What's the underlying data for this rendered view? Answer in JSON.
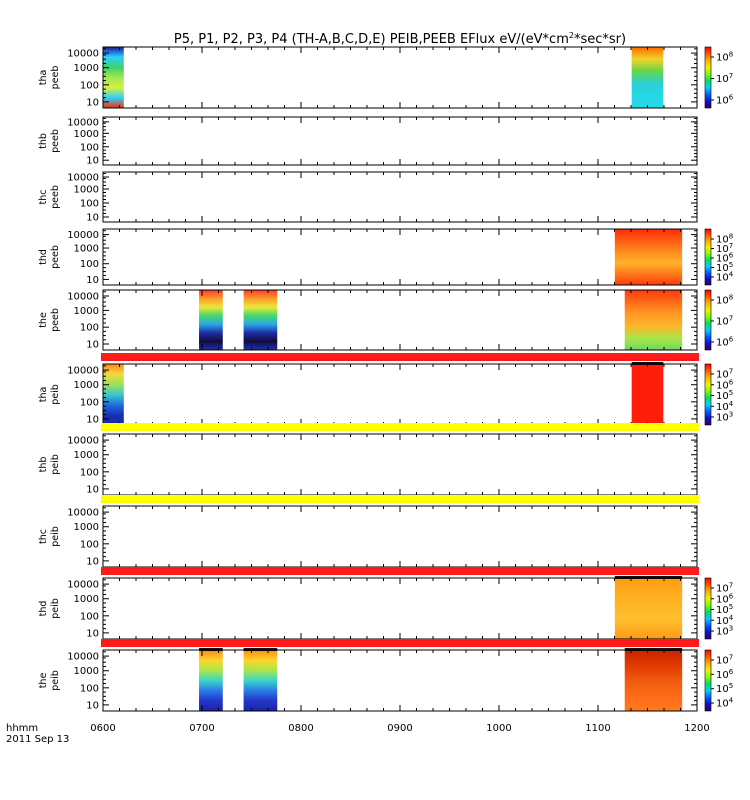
{
  "title_main": "P5, P1, P2, P3, P4 (TH-A,B,C,D,E) PEIB,PEEB EFlux eV/(eV*cm",
  "title_sup": "2",
  "title_tail": "*sec*sr)",
  "footer": {
    "line1": "hhmm",
    "line2": "2011 Sep 13"
  },
  "chart_data": {
    "type": "heatmap",
    "x_tick_labels": [
      "0600",
      "0700",
      "0800",
      "0900",
      "1000",
      "1100",
      "1200"
    ],
    "x_range_hours": [
      6,
      12
    ],
    "y_scale": "log",
    "y_tick_labels": [
      "10",
      "100",
      "1000",
      "10000"
    ],
    "colors": {
      "stripe_red": "#ff1a1a",
      "stripe_yellow": "#ffff00",
      "deep_red": "#8b0000"
    },
    "panels": [
      {
        "probe": "tha",
        "instrument": "peeb",
        "colorbar": {
          "ticks": [
            {
              "base": "10",
              "exp": "8"
            },
            {
              "base": "10",
              "exp": "7"
            },
            {
              "base": "10",
              "exp": "6"
            }
          ]
        },
        "data_blocks": [
          {
            "t0": 6.0,
            "t1": 6.21,
            "palette": "tha_peeb_a"
          },
          {
            "t0": 11.34,
            "t1": 11.66,
            "palette": "tha_peeb_b"
          }
        ]
      },
      {
        "probe": "thb",
        "instrument": "peeb",
        "colorbar": null,
        "data_blocks": []
      },
      {
        "probe": "thc",
        "instrument": "peeb",
        "colorbar": null,
        "data_blocks": []
      },
      {
        "probe": "thd",
        "instrument": "peeb",
        "colorbar": {
          "ticks": [
            {
              "base": "10",
              "exp": "8"
            },
            {
              "base": "10",
              "exp": "7"
            },
            {
              "base": "10",
              "exp": "6"
            },
            {
              "base": "10",
              "exp": "5"
            },
            {
              "base": "10",
              "exp": "4"
            }
          ]
        },
        "data_blocks": [
          {
            "t0": 11.17,
            "t1": 11.85,
            "palette": "thd_peeb"
          }
        ]
      },
      {
        "probe": "the",
        "instrument": "peeb",
        "colorbar": {
          "ticks": [
            {
              "base": "10",
              "exp": "8"
            },
            {
              "base": "10",
              "exp": "7"
            },
            {
              "base": "10",
              "exp": "6"
            }
          ]
        },
        "data_blocks": [
          {
            "t0": 6.97,
            "t1": 7.21,
            "palette": "the_peeb"
          },
          {
            "t0": 7.42,
            "t1": 7.76,
            "palette": "the_peeb"
          },
          {
            "t0": 11.27,
            "t1": 11.85,
            "palette": "the_peeb2"
          }
        ]
      },
      {
        "probe": "tha",
        "instrument": "peib",
        "stripe": "red",
        "colorbar": {
          "ticks": [
            {
              "base": "10",
              "exp": "7"
            },
            {
              "base": "10",
              "exp": "6"
            },
            {
              "base": "10",
              "exp": "5"
            },
            {
              "base": "10",
              "exp": "4"
            },
            {
              "base": "10",
              "exp": "3"
            }
          ]
        },
        "data_blocks": [
          {
            "t0": 6.0,
            "t1": 6.21,
            "palette": "tha_peib"
          },
          {
            "t0": 11.34,
            "t1": 11.66,
            "palette": "red_flat"
          }
        ]
      },
      {
        "probe": "thb",
        "instrument": "peib",
        "stripe": "yellow",
        "colorbar": null,
        "data_blocks": []
      },
      {
        "probe": "thc",
        "instrument": "peib",
        "stripe": "yellow",
        "colorbar": null,
        "data_blocks": []
      },
      {
        "probe": "thd",
        "instrument": "peib",
        "stripe": "red",
        "colorbar": {
          "ticks": [
            {
              "base": "10",
              "exp": "7"
            },
            {
              "base": "10",
              "exp": "6"
            },
            {
              "base": "10",
              "exp": "5"
            },
            {
              "base": "10",
              "exp": "4"
            },
            {
              "base": "10",
              "exp": "3"
            }
          ]
        },
        "data_blocks": [
          {
            "t0": 11.17,
            "t1": 11.85,
            "palette": "orange_grad"
          }
        ]
      },
      {
        "probe": "the",
        "instrument": "peib",
        "stripe": "red",
        "colorbar": {
          "ticks": [
            {
              "base": "10",
              "exp": "7"
            },
            {
              "base": "10",
              "exp": "6"
            },
            {
              "base": "10",
              "exp": "5"
            },
            {
              "base": "10",
              "exp": "4"
            }
          ]
        },
        "data_blocks": [
          {
            "t0": 6.97,
            "t1": 7.21,
            "palette": "blue_green"
          },
          {
            "t0": 7.42,
            "t1": 7.76,
            "palette": "blue_green"
          },
          {
            "t0": 11.27,
            "t1": 11.85,
            "palette": "orange_red"
          }
        ]
      }
    ]
  }
}
